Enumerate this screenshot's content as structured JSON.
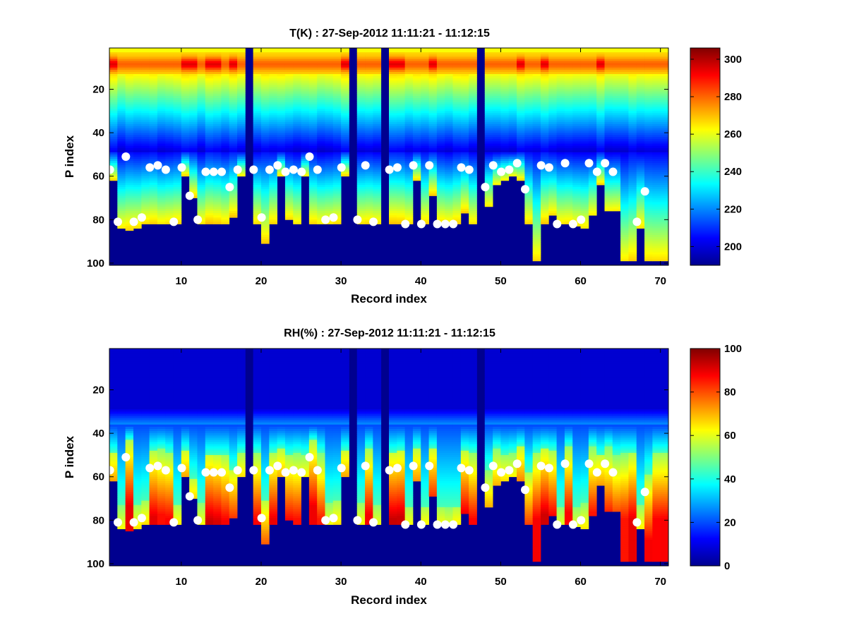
{
  "chart_data": [
    {
      "type": "heatmap",
      "title": "T(K) : 27-Sep-2012 11:11:21 - 11:12:15",
      "xlabel": "Record index",
      "ylabel": "P index",
      "xlim": [
        1,
        71
      ],
      "ylim": [
        1,
        101
      ],
      "y_reversed": true,
      "xticks": [
        10,
        20,
        30,
        40,
        50,
        60,
        70
      ],
      "yticks": [
        20,
        40,
        60,
        80,
        100
      ],
      "colormap": "jet",
      "colorbar": {
        "range": [
          190,
          306
        ],
        "ticks": [
          200,
          220,
          240,
          260,
          280,
          300
        ]
      },
      "marker_color": "#ffffff",
      "surface_markers": [
        {
          "record": 1,
          "p": 57
        },
        {
          "record": 2,
          "p": 81
        },
        {
          "record": 3,
          "p": 51
        },
        {
          "record": 4,
          "p": 81
        },
        {
          "record": 5,
          "p": 79
        },
        {
          "record": 6,
          "p": 56
        },
        {
          "record": 7,
          "p": 55
        },
        {
          "record": 8,
          "p": 57
        },
        {
          "record": 9,
          "p": 81
        },
        {
          "record": 10,
          "p": 56
        },
        {
          "record": 11,
          "p": 69
        },
        {
          "record": 12,
          "p": 80
        },
        {
          "record": 13,
          "p": 58
        },
        {
          "record": 14,
          "p": 58
        },
        {
          "record": 15,
          "p": 58
        },
        {
          "record": 16,
          "p": 65
        },
        {
          "record": 17,
          "p": 57
        },
        {
          "record": 19,
          "p": 57
        },
        {
          "record": 20,
          "p": 79
        },
        {
          "record": 21,
          "p": 57
        },
        {
          "record": 22,
          "p": 55
        },
        {
          "record": 23,
          "p": 58
        },
        {
          "record": 24,
          "p": 57
        },
        {
          "record": 25,
          "p": 58
        },
        {
          "record": 26,
          "p": 51
        },
        {
          "record": 27,
          "p": 57
        },
        {
          "record": 28,
          "p": 80
        },
        {
          "record": 29,
          "p": 79
        },
        {
          "record": 30,
          "p": 56
        },
        {
          "record": 32,
          "p": 80
        },
        {
          "record": 33,
          "p": 55
        },
        {
          "record": 34,
          "p": 81
        },
        {
          "record": 36,
          "p": 57
        },
        {
          "record": 37,
          "p": 56
        },
        {
          "record": 38,
          "p": 82
        },
        {
          "record": 39,
          "p": 55
        },
        {
          "record": 40,
          "p": 82
        },
        {
          "record": 41,
          "p": 55
        },
        {
          "record": 42,
          "p": 82
        },
        {
          "record": 43,
          "p": 82
        },
        {
          "record": 44,
          "p": 82
        },
        {
          "record": 45,
          "p": 56
        },
        {
          "record": 46,
          "p": 57
        },
        {
          "record": 48,
          "p": 65
        },
        {
          "record": 49,
          "p": 55
        },
        {
          "record": 50,
          "p": 58
        },
        {
          "record": 51,
          "p": 57
        },
        {
          "record": 52,
          "p": 54
        },
        {
          "record": 53,
          "p": 66
        },
        {
          "record": 55,
          "p": 55
        },
        {
          "record": 56,
          "p": 56
        },
        {
          "record": 57,
          "p": 82
        },
        {
          "record": 58,
          "p": 54
        },
        {
          "record": 59,
          "p": 82
        },
        {
          "record": 60,
          "p": 80
        },
        {
          "record": 61,
          "p": 54
        },
        {
          "record": 62,
          "p": 58
        },
        {
          "record": 63,
          "p": 54
        },
        {
          "record": 64,
          "p": 58
        },
        {
          "record": 67,
          "p": 81
        },
        {
          "record": 68,
          "p": 67
        }
      ]
    },
    {
      "type": "heatmap",
      "title": "RH(%) : 27-Sep-2012 11:11:21 - 11:12:15",
      "xlabel": "Record index",
      "ylabel": "P index",
      "xlim": [
        1,
        71
      ],
      "ylim": [
        1,
        101
      ],
      "y_reversed": true,
      "xticks": [
        10,
        20,
        30,
        40,
        50,
        60,
        70
      ],
      "yticks": [
        20,
        40,
        60,
        80,
        100
      ],
      "colormap": "jet",
      "colorbar": {
        "range": [
          0,
          100
        ],
        "ticks": [
          0,
          20,
          40,
          60,
          80,
          100
        ]
      },
      "marker_color": "#ffffff",
      "surface_markers": [
        {
          "record": 1,
          "p": 57
        },
        {
          "record": 2,
          "p": 81
        },
        {
          "record": 3,
          "p": 51
        },
        {
          "record": 4,
          "p": 81
        },
        {
          "record": 5,
          "p": 79
        },
        {
          "record": 6,
          "p": 56
        },
        {
          "record": 7,
          "p": 55
        },
        {
          "record": 8,
          "p": 57
        },
        {
          "record": 9,
          "p": 81
        },
        {
          "record": 10,
          "p": 56
        },
        {
          "record": 11,
          "p": 69
        },
        {
          "record": 12,
          "p": 80
        },
        {
          "record": 13,
          "p": 58
        },
        {
          "record": 14,
          "p": 58
        },
        {
          "record": 15,
          "p": 58
        },
        {
          "record": 16,
          "p": 65
        },
        {
          "record": 17,
          "p": 57
        },
        {
          "record": 19,
          "p": 57
        },
        {
          "record": 20,
          "p": 79
        },
        {
          "record": 21,
          "p": 57
        },
        {
          "record": 22,
          "p": 55
        },
        {
          "record": 23,
          "p": 58
        },
        {
          "record": 24,
          "p": 57
        },
        {
          "record": 25,
          "p": 58
        },
        {
          "record": 26,
          "p": 51
        },
        {
          "record": 27,
          "p": 57
        },
        {
          "record": 28,
          "p": 80
        },
        {
          "record": 29,
          "p": 79
        },
        {
          "record": 30,
          "p": 56
        },
        {
          "record": 32,
          "p": 80
        },
        {
          "record": 33,
          "p": 55
        },
        {
          "record": 34,
          "p": 81
        },
        {
          "record": 36,
          "p": 57
        },
        {
          "record": 37,
          "p": 56
        },
        {
          "record": 38,
          "p": 82
        },
        {
          "record": 39,
          "p": 55
        },
        {
          "record": 40,
          "p": 82
        },
        {
          "record": 41,
          "p": 55
        },
        {
          "record": 42,
          "p": 82
        },
        {
          "record": 43,
          "p": 82
        },
        {
          "record": 44,
          "p": 82
        },
        {
          "record": 45,
          "p": 56
        },
        {
          "record": 46,
          "p": 57
        },
        {
          "record": 48,
          "p": 65
        },
        {
          "record": 49,
          "p": 55
        },
        {
          "record": 50,
          "p": 58
        },
        {
          "record": 51,
          "p": 57
        },
        {
          "record": 52,
          "p": 54
        },
        {
          "record": 53,
          "p": 66
        },
        {
          "record": 55,
          "p": 55
        },
        {
          "record": 56,
          "p": 56
        },
        {
          "record": 57,
          "p": 82
        },
        {
          "record": 58,
          "p": 54
        },
        {
          "record": 59,
          "p": 82
        },
        {
          "record": 60,
          "p": 80
        },
        {
          "record": 61,
          "p": 54
        },
        {
          "record": 62,
          "p": 58
        },
        {
          "record": 63,
          "p": 54
        },
        {
          "record": 64,
          "p": 58
        },
        {
          "record": 67,
          "p": 81
        },
        {
          "record": 68,
          "p": 67
        }
      ]
    }
  ],
  "profile_bottoms": [
    61,
    83,
    84,
    83,
    81,
    81,
    81,
    81,
    81,
    59,
    69,
    81,
    81,
    81,
    81,
    78,
    59,
    1,
    81,
    90,
    81,
    59,
    79,
    81,
    59,
    81,
    81,
    81,
    81,
    59,
    1,
    81,
    81,
    81,
    1,
    81,
    81,
    81,
    61,
    81,
    68,
    81,
    81,
    81,
    76,
    81,
    1,
    73,
    63,
    61,
    59,
    61,
    81,
    98,
    81,
    77,
    81,
    81,
    82,
    83,
    77,
    63,
    75,
    75,
    98,
    98,
    83,
    98,
    98,
    98
  ],
  "missing_records": [
    18,
    31,
    35,
    47
  ]
}
